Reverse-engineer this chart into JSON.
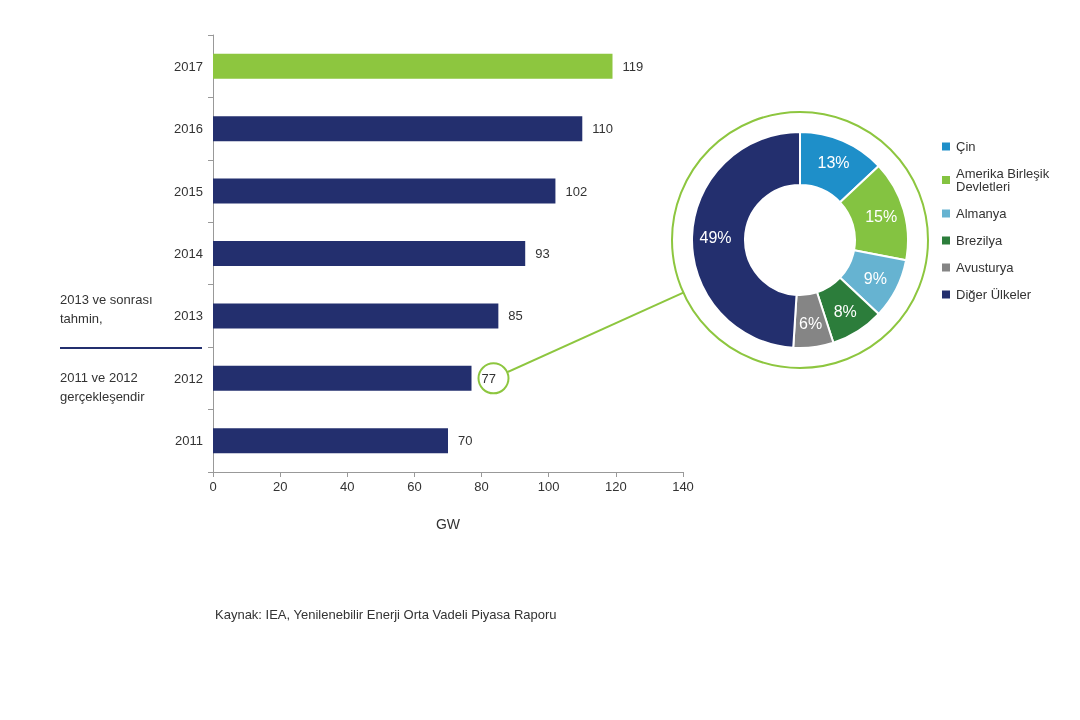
{
  "chart_data": [
    {
      "type": "bar",
      "orientation": "horizontal",
      "categories": [
        "2017",
        "2016",
        "2015",
        "2014",
        "2013",
        "2012",
        "2011"
      ],
      "values": [
        119,
        110,
        102,
        93,
        85,
        77,
        70
      ],
      "colors": [
        "#8dc63f",
        "#232f6e",
        "#232f6e",
        "#232f6e",
        "#232f6e",
        "#232f6e",
        "#232f6e"
      ],
      "xlim": [
        0,
        140
      ],
      "xticks": [
        0,
        20,
        40,
        60,
        80,
        100,
        120,
        140
      ],
      "xlabel": "GW",
      "data_labels": true,
      "grid": false,
      "legend": false,
      "annotations": [
        "2013 ve sonrası tahmin,",
        "2011 ve 2012 gerçekleşendir",
        "Kaynak: IEA, Yenilenebilir Enerji Orta Vadeli Piyasa Raporu"
      ]
    },
    {
      "type": "donut",
      "categories": [
        "Çin",
        "Amerika Birleşik Devletleri",
        "Almanya",
        "Brezilya",
        "Avusturya",
        "Diğer Ülkeler"
      ],
      "values": [
        13,
        15,
        9,
        8,
        6,
        49
      ],
      "colors": [
        "#1e8fc9",
        "#84c341",
        "#66b3d1",
        "#2c7d3b",
        "#858585",
        "#232f6e"
      ],
      "value_labels": [
        "13%",
        "15%",
        "9%",
        "8%",
        "6%",
        "49%"
      ],
      "legend": "right"
    }
  ]
}
